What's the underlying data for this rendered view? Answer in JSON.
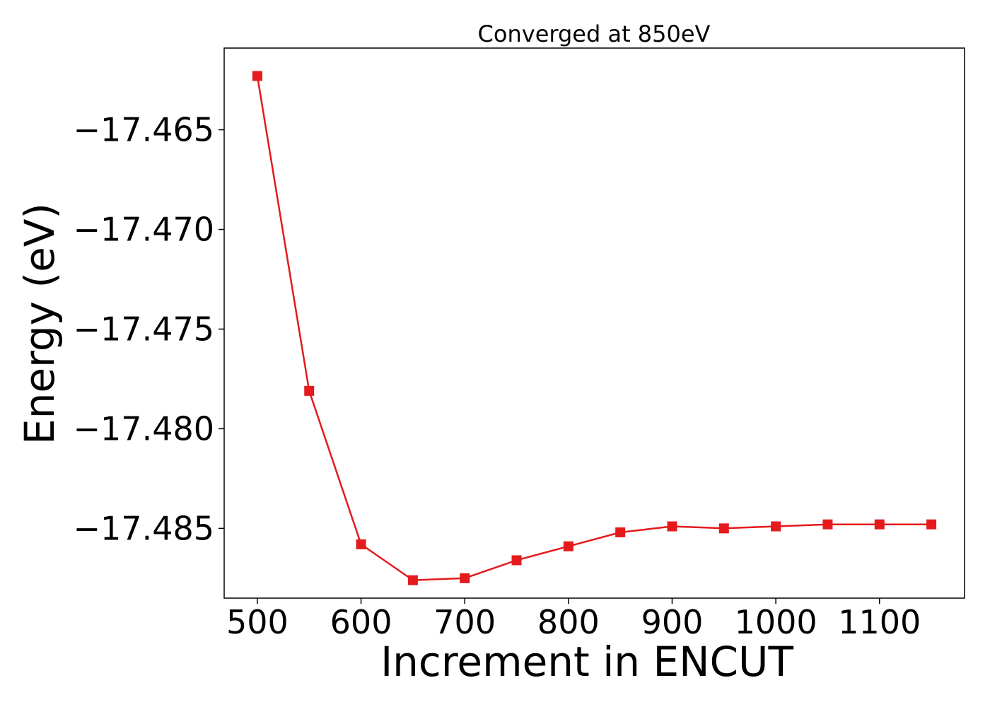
{
  "chart_data": {
    "type": "line",
    "title": "Converged at 850eV",
    "xlabel": "Increment in ENCUT",
    "ylabel": "Energy (eV)",
    "x": [
      500,
      550,
      600,
      650,
      700,
      750,
      800,
      850,
      900,
      950,
      1000,
      1050,
      1100,
      1150
    ],
    "series": [
      {
        "values": [
          -17.4623,
          -17.4781,
          -17.4858,
          -17.4876,
          -17.4875,
          -17.4866,
          -17.4859,
          -17.4852,
          -17.4849,
          -17.485,
          -17.4849,
          -17.4848,
          -17.4848,
          -17.4848
        ],
        "color": "#e41a1c",
        "marker": "square"
      }
    ],
    "xticks": [
      500,
      600,
      700,
      800,
      900,
      1000,
      1100
    ],
    "xtick_labels": [
      "500",
      "600",
      "700",
      "800",
      "900",
      "1000",
      "1100"
    ],
    "yticks": [
      -17.465,
      -17.47,
      -17.475,
      -17.48,
      -17.485
    ],
    "ytick_labels": [
      "−17.465",
      "−17.470",
      "−17.475",
      "−17.480",
      "−17.485"
    ],
    "xlim": [
      468,
      1182
    ],
    "ylim": [
      -17.4885,
      -17.4609
    ],
    "grid": false,
    "legend": "none"
  }
}
